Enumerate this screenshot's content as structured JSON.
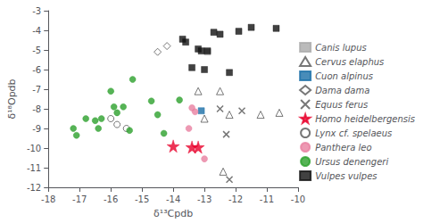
{
  "chart_data": {
    "type": "scatter",
    "xlabel": "δ¹³Cpdb",
    "ylabel": "δ¹⁸Opdb",
    "xlim": [
      -18,
      -10
    ],
    "ylim": [
      -12,
      -3
    ],
    "xticks": [
      -18,
      -17,
      -16,
      -15,
      -14,
      -13,
      -12,
      -11,
      -10
    ],
    "yticks": [
      -12,
      -11,
      -10,
      -9,
      -8,
      -7,
      -6,
      -5,
      -4,
      -3
    ],
    "grid": false,
    "legend": "right",
    "series": [
      {
        "name": "Canis lupus",
        "marker": "square",
        "color": "#aaaaaa",
        "x": [
          -12.9
        ],
        "values": [
          -5.1
        ]
      },
      {
        "name": "Cervus elaphus",
        "marker": "triangle-open",
        "color": "#555555",
        "x": [
          -13.2,
          -12.5,
          -13.0,
          -12.2,
          -11.2,
          -10.6,
          -12.4
        ],
        "values": [
          -7.1,
          -7.1,
          -8.5,
          -8.3,
          -8.3,
          -8.2,
          -11.2
        ]
      },
      {
        "name": "Cuon alpinus",
        "marker": "square",
        "color": "#1a6fa8",
        "x": [
          -13.1
        ],
        "values": [
          -8.1
        ]
      },
      {
        "name": "Dama dama",
        "marker": "diamond-open",
        "color": "#555555",
        "x": [
          -14.2,
          -14.5
        ],
        "values": [
          -4.8,
          -5.1
        ]
      },
      {
        "name": "Equus ferus",
        "marker": "x",
        "color": "#555555",
        "x": [
          -12.5,
          -11.8,
          -12.3,
          -12.2
        ],
        "values": [
          -8.0,
          -8.1,
          -9.3,
          -11.6
        ]
      },
      {
        "name": "Homo heidelbergensis",
        "marker": "star",
        "color": "#e8002a",
        "x": [
          -14.0,
          -13.4,
          -13.2
        ],
        "values": [
          -9.9,
          -9.95,
          -9.95
        ]
      },
      {
        "name": "Lynx cf. spelaeus",
        "marker": "circle-open",
        "color": "#555555",
        "x": [
          -16.0,
          -15.8,
          -15.5
        ],
        "values": [
          -8.5,
          -8.8,
          -9.0
        ]
      },
      {
        "name": "Panthera leo",
        "marker": "circle",
        "color": "#e87fa0",
        "x": [
          -13.4,
          -13.3,
          -13.5,
          -13.0
        ],
        "values": [
          -7.95,
          -8.15,
          -9.0,
          -10.55
        ]
      },
      {
        "name": "Ursus denengeri",
        "marker": "circle",
        "color": "#2ca02c",
        "x": [
          -17.2,
          -17.1,
          -16.8,
          -16.5,
          -16.4,
          -16.3,
          -16.0,
          -15.9,
          -15.8,
          -15.6,
          -15.4,
          -15.3,
          -14.7,
          -14.5,
          -14.3,
          -13.8
        ],
        "values": [
          -9.0,
          -9.35,
          -8.5,
          -8.6,
          -9.0,
          -8.5,
          -7.1,
          -7.9,
          -8.2,
          -7.9,
          -9.1,
          -6.5,
          -7.6,
          -8.3,
          -9.25,
          -7.55
        ]
      },
      {
        "name": "Vulpes vulpes",
        "marker": "square",
        "color": "#111111",
        "x": [
          -13.7,
          -13.6,
          -13.2,
          -13.1,
          -12.9,
          -13.4,
          -13.0,
          -12.7,
          -12.5,
          -12.2,
          -11.9,
          -11.5,
          -10.7
        ],
        "values": [
          -4.45,
          -4.6,
          -4.95,
          -5.05,
          -5.05,
          -5.9,
          -6.0,
          -4.1,
          -4.2,
          -6.15,
          -4.05,
          -3.85,
          -3.9
        ]
      }
    ]
  }
}
